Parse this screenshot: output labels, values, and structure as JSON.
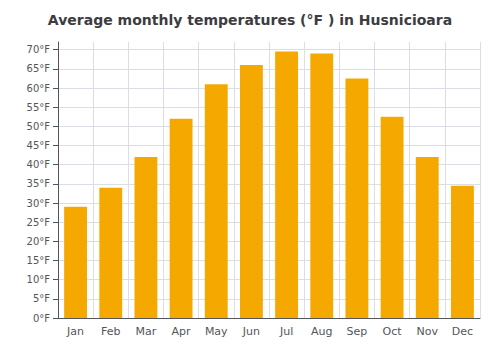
{
  "chart_data": {
    "type": "bar",
    "title": "Average monthly temperatures (°F ) in Husnicioara",
    "categories": [
      "Jan",
      "Feb",
      "Mar",
      "Apr",
      "May",
      "Jun",
      "Jul",
      "Aug",
      "Sep",
      "Oct",
      "Nov",
      "Dec"
    ],
    "values": [
      29,
      34,
      42,
      52,
      61,
      66,
      69.5,
      69,
      62.5,
      52.5,
      42,
      34.5
    ],
    "color": "#F5A800",
    "ylim": [
      0,
      72
    ],
    "yticks": [
      {
        "value": 0,
        "label": "0°F"
      },
      {
        "value": 5,
        "label": "5°F"
      },
      {
        "value": 10,
        "label": "10°F"
      },
      {
        "value": 15,
        "label": "15°F"
      },
      {
        "value": 20,
        "label": "20°F"
      },
      {
        "value": 25,
        "label": "25°F"
      },
      {
        "value": 30,
        "label": "30°F"
      },
      {
        "value": 35,
        "label": "35°F"
      },
      {
        "value": 40,
        "label": "40°F"
      },
      {
        "value": 45,
        "label": "45°F"
      },
      {
        "value": 50,
        "label": "50°F"
      },
      {
        "value": 55,
        "label": "55°F"
      },
      {
        "value": 60,
        "label": "60°F"
      },
      {
        "value": 65,
        "label": "65°F"
      },
      {
        "value": 70,
        "label": "70°F"
      }
    ],
    "grid": true
  }
}
